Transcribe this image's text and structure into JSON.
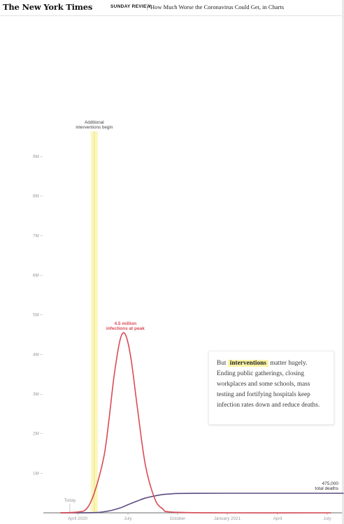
{
  "header": {
    "logo": "The New York Times",
    "section": "SUNDAY REVIEW",
    "headline": "How Much Worse the Coronavirus Could Get, in Charts"
  },
  "annotations": {
    "interventions_label": [
      "Additional",
      "interventions begin"
    ],
    "peak_label": [
      "4.5 million",
      "infections at peak"
    ],
    "today_label": "Today",
    "deaths_label": [
      "475,000",
      "total deaths"
    ]
  },
  "textbox": {
    "before": "But",
    "highlight": "interventions",
    "after": "matter hugely. Ending public gatherings, closing workplaces and some schools, mass testing and fortifying hospitals keep infection rates down and reduce deaths."
  },
  "colors": {
    "infections": "#d94a55",
    "deaths": "#5c4b80",
    "highlight": "#fbf4a6",
    "axis_text": "#9a9a9a",
    "peak_text": "#d94a55"
  },
  "chart_data": {
    "type": "line",
    "x_tick_labels": [
      "April 2020",
      "July",
      "October",
      "January 2021",
      "April",
      "July"
    ],
    "y_tick_labels": [
      "1M",
      "2M",
      "3M",
      "4M",
      "5M",
      "6M",
      "7M",
      "8M",
      "9M"
    ],
    "ylim": [
      0,
      9000000
    ],
    "series": [
      {
        "name": "infections",
        "x": [
          "2020-03-15",
          "2020-04-15",
          "2020-05-01",
          "2020-05-15",
          "2020-06-01",
          "2020-06-10",
          "2020-06-20",
          "2020-07-01",
          "2020-07-10",
          "2020-07-20",
          "2020-08-01",
          "2020-08-15",
          "2020-09-01",
          "2020-09-15",
          "2020-10-01",
          "2021-01-01",
          "2021-07-15"
        ],
        "values": [
          0,
          20000,
          100000,
          500000,
          1400000,
          2300000,
          3500000,
          4400000,
          4500000,
          3900000,
          2600000,
          1200000,
          350000,
          100000,
          20000,
          0,
          0
        ]
      },
      {
        "name": "deaths",
        "cumulative": true,
        "x": [
          "2020-03-15",
          "2020-05-15",
          "2020-06-01",
          "2020-06-15",
          "2020-07-01",
          "2020-07-15",
          "2020-08-01",
          "2020-08-15",
          "2020-09-01",
          "2020-09-15",
          "2020-10-01",
          "2020-10-15",
          "2020-11-15",
          "2021-01-01",
          "2021-07-15"
        ],
        "values": [
          0,
          5000,
          25000,
          60000,
          120000,
          200000,
          290000,
          360000,
          410000,
          445000,
          462000,
          470000,
          474000,
          475000,
          475000
        ]
      }
    ],
    "final_total_deaths": 475000,
    "annotation_events": [
      {
        "label": "Additional interventions begin",
        "x": "2020-05-15"
      },
      {
        "label": "Today",
        "x": "2020-04-01"
      }
    ]
  }
}
